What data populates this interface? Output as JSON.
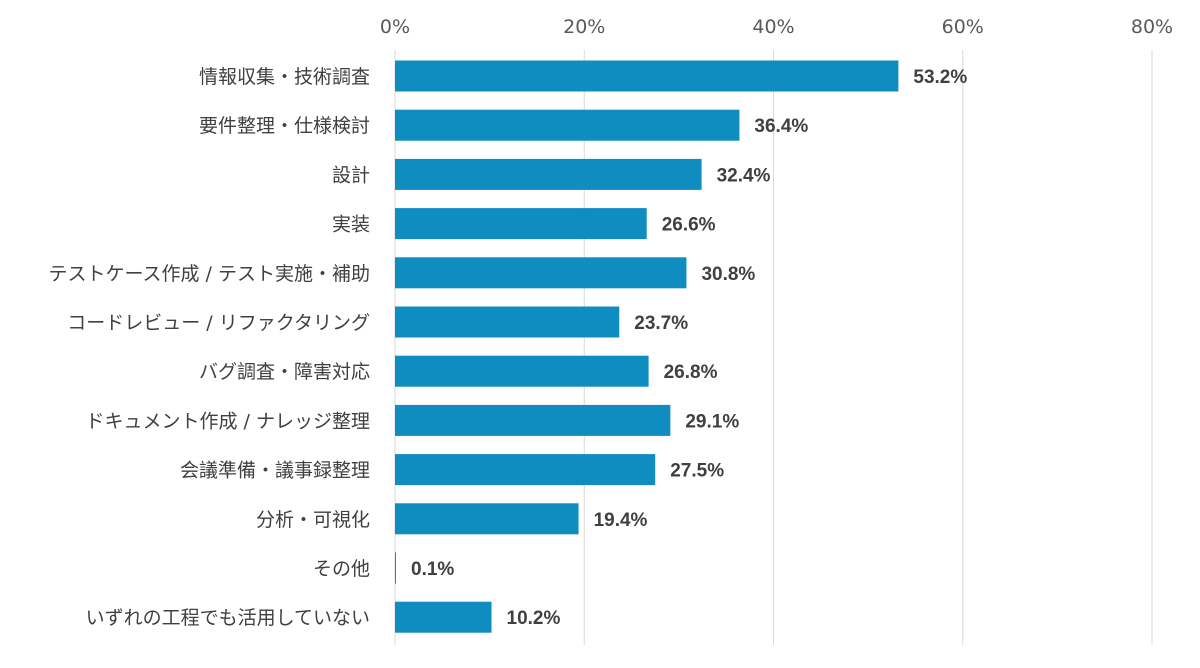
{
  "chart_data": {
    "type": "bar",
    "orientation": "horizontal",
    "categories": [
      "情報収集・技術調査",
      "要件整理・仕様検討",
      "設計",
      "実装",
      "テストケース作成 / テスト実施・補助",
      "コードレビュー / リファクタリング",
      "バグ調査・障害対応",
      "ドキュメント作成 / ナレッジ整理",
      "会議準備・議事録整理",
      "分析・可視化",
      "その他",
      "いずれの工程でも活用していない"
    ],
    "values": [
      53.2,
      36.4,
      32.4,
      26.6,
      30.8,
      23.7,
      26.8,
      29.1,
      27.5,
      19.4,
      0.1,
      10.2
    ],
    "value_labels": [
      "53.2%",
      "36.4%",
      "32.4%",
      "26.6%",
      "30.8%",
      "23.7%",
      "26.8%",
      "29.1%",
      "27.5%",
      "19.4%",
      "0.1%",
      "10.2%"
    ],
    "xlim": [
      0,
      80
    ],
    "xticks": [
      0,
      20,
      40,
      60,
      80
    ],
    "xtick_labels": [
      "0%",
      "20%",
      "40%",
      "60%",
      "80%"
    ],
    "x_axis_position": "top",
    "grid": true,
    "bar_color": "#0f8cc0",
    "title": "",
    "xlabel": "",
    "ylabel": ""
  }
}
